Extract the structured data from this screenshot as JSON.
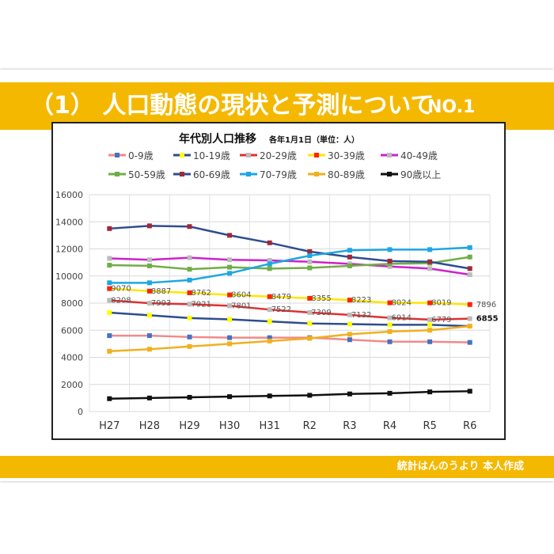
{
  "slide": {
    "title": "（1） 人口動態の現状と予測について",
    "title_no": "NO.1",
    "footer": "統計はんのうより 本人作成",
    "accent_color": "#f5b800"
  },
  "chart_data": {
    "type": "line",
    "title": "年代別人口推移",
    "subtitle": "各年1月1日（単位：人）",
    "categories": [
      "H27",
      "H28",
      "H29",
      "H30",
      "H31",
      "R2",
      "R3",
      "R4",
      "R5",
      "R6"
    ],
    "ylim": [
      0,
      16000
    ],
    "yticks": [
      0,
      2000,
      4000,
      6000,
      8000,
      10000,
      12000,
      14000,
      16000
    ],
    "grid": true,
    "legend_position": "top",
    "series": [
      {
        "name": "0-9歳",
        "color": "#f08a8a",
        "marker": "#4472c4",
        "values": [
          5600,
          5600,
          5500,
          5450,
          5450,
          5450,
          5300,
          5150,
          5150,
          5100
        ]
      },
      {
        "name": "10-19歳",
        "color": "#2e4d8f",
        "marker": "#ffff00",
        "values": [
          7300,
          7100,
          6900,
          6800,
          6650,
          6500,
          6450,
          6400,
          6400,
          6300
        ]
      },
      {
        "name": "20-29歳",
        "color": "#e03030",
        "marker": "#bbbbbb",
        "values": [
          8208,
          7993,
          7921,
          7801,
          7522,
          7309,
          7132,
          6914,
          6779,
          6855
        ],
        "labels": [
          "8208",
          "7993",
          "7921",
          "7801",
          "7522",
          "7309",
          "7132",
          "6914",
          "6779",
          "6855"
        ]
      },
      {
        "name": "30-39歳",
        "color": "#ffe600",
        "marker": "#ff2200",
        "values": [
          9070,
          8887,
          8762,
          8604,
          8479,
          8355,
          8223,
          8024,
          8019,
          7896
        ],
        "labels": [
          "9070",
          "8887",
          "8762",
          "8604",
          "8479",
          "8355",
          "8223",
          "8024",
          "8019",
          "7896"
        ]
      },
      {
        "name": "40-49歳",
        "color": "#cc22cc",
        "marker": "#bbbbbb",
        "values": [
          11300,
          11200,
          11350,
          11200,
          11150,
          11050,
          10900,
          10700,
          10550,
          10100
        ]
      },
      {
        "name": "50-59歳",
        "color": "#70ad47",
        "marker": "#70ad47",
        "values": [
          10800,
          10750,
          10500,
          10650,
          10550,
          10600,
          10750,
          10900,
          10950,
          11400
        ]
      },
      {
        "name": "60-69歳",
        "color": "#2e4d8f",
        "marker": "#a0283a",
        "values": [
          13500,
          13700,
          13650,
          13000,
          12450,
          11800,
          11400,
          11100,
          11050,
          10550
        ]
      },
      {
        "name": "70-79歳",
        "color": "#1ea7e1",
        "marker": "#1ea7e1",
        "values": [
          9500,
          9500,
          9700,
          10200,
          10900,
          11500,
          11900,
          11950,
          11950,
          12100
        ]
      },
      {
        "name": "80-89歳",
        "color": "#f0b020",
        "marker": "#f0b020",
        "values": [
          4450,
          4600,
          4800,
          5000,
          5200,
          5400,
          5700,
          5900,
          6000,
          6300
        ]
      },
      {
        "name": "90歳以上",
        "color": "#111111",
        "marker": "#111111",
        "values": [
          950,
          1000,
          1050,
          1100,
          1150,
          1200,
          1300,
          1350,
          1450,
          1500
        ]
      }
    ]
  }
}
